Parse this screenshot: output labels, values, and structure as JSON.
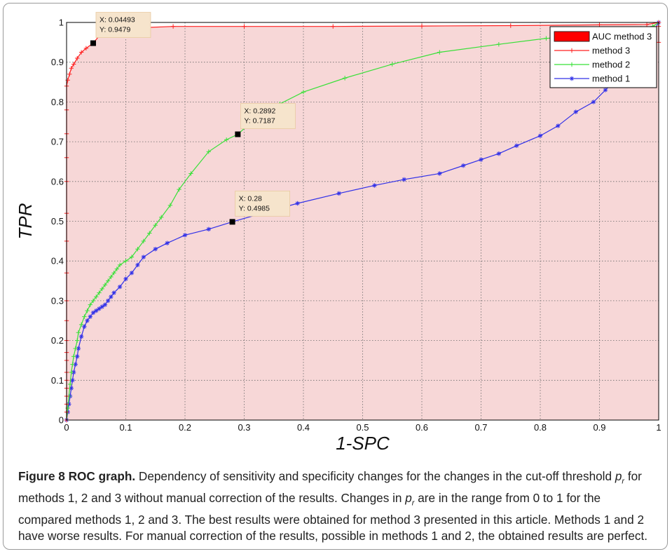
{
  "chart_data": {
    "type": "line",
    "title": "",
    "xlabel": "1-SPC",
    "ylabel": "TPR",
    "xlim": [
      0,
      1
    ],
    "ylim": [
      0,
      1
    ],
    "xticks": [
      "0",
      "0.1",
      "0.2",
      "0.3",
      "0.4",
      "0.5",
      "0.6",
      "0.7",
      "0.8",
      "0.9",
      "1"
    ],
    "yticks": [
      "0",
      "0.1",
      "0.2",
      "0.3",
      "0.4",
      "0.5",
      "0.6",
      "0.7",
      "0.8",
      "0.9",
      "1"
    ],
    "grid": true,
    "legend_position": "top-right",
    "area": {
      "name": "AUC method 3",
      "color": "#ff0000",
      "fill_color": "#f7d7d7"
    },
    "series": [
      {
        "name": "method 3",
        "color": "#ff2020",
        "marker": "+",
        "x": [
          0,
          0,
          0,
          0,
          0,
          0,
          0,
          0,
          0,
          0,
          0,
          0,
          0,
          0,
          0,
          0,
          0,
          0,
          0,
          0,
          0.002,
          0.005,
          0.008,
          0.012,
          0.018,
          0.025,
          0.033,
          0.04493,
          0.06,
          0.08,
          0.1,
          0.13,
          0.18,
          0.3,
          0.45,
          0.6,
          0.75,
          0.9,
          0.98,
          1,
          1,
          1
        ],
        "y": [
          0,
          0.02,
          0.04,
          0.06,
          0.08,
          0.1,
          0.12,
          0.15,
          0.17,
          0.2,
          0.25,
          0.3,
          0.37,
          0.45,
          0.52,
          0.6,
          0.66,
          0.72,
          0.78,
          0.84,
          0.855,
          0.87,
          0.885,
          0.895,
          0.91,
          0.925,
          0.935,
          0.9479,
          0.975,
          0.982,
          0.985,
          0.987,
          0.99,
          0.99,
          0.99,
          0.991,
          0.992,
          0.994,
          0.995,
          1.0,
          0.99,
          0.95
        ]
      },
      {
        "name": "method 2",
        "color": "#38e038",
        "marker": "+",
        "x": [
          0,
          0.002,
          0.004,
          0.006,
          0.008,
          0.01,
          0.012,
          0.015,
          0.018,
          0.02,
          0.025,
          0.03,
          0.035,
          0.04,
          0.045,
          0.05,
          0.055,
          0.06,
          0.065,
          0.07,
          0.075,
          0.08,
          0.085,
          0.09,
          0.1,
          0.11,
          0.12,
          0.13,
          0.14,
          0.15,
          0.16,
          0.175,
          0.19,
          0.21,
          0.24,
          0.27,
          0.2892,
          0.32,
          0.36,
          0.4,
          0.47,
          0.55,
          0.63,
          0.73,
          0.81,
          0.87,
          0.91,
          0.94,
          0.97,
          0.99,
          1
        ],
        "y": [
          0,
          0.03,
          0.06,
          0.09,
          0.12,
          0.14,
          0.16,
          0.18,
          0.2,
          0.22,
          0.24,
          0.26,
          0.275,
          0.29,
          0.3,
          0.31,
          0.32,
          0.33,
          0.34,
          0.35,
          0.36,
          0.37,
          0.38,
          0.39,
          0.4,
          0.41,
          0.43,
          0.45,
          0.47,
          0.49,
          0.51,
          0.54,
          0.58,
          0.62,
          0.675,
          0.705,
          0.7187,
          0.76,
          0.795,
          0.825,
          0.86,
          0.895,
          0.925,
          0.945,
          0.96,
          0.965,
          0.975,
          0.98,
          0.985,
          0.99,
          1.0
        ]
      },
      {
        "name": "method 1",
        "color": "#3030e8",
        "marker": "*",
        "x": [
          0,
          0.002,
          0.004,
          0.006,
          0.008,
          0.01,
          0.012,
          0.015,
          0.018,
          0.02,
          0.025,
          0.03,
          0.035,
          0.04,
          0.045,
          0.05,
          0.055,
          0.06,
          0.065,
          0.07,
          0.075,
          0.08,
          0.09,
          0.1,
          0.11,
          0.12,
          0.13,
          0.15,
          0.17,
          0.2,
          0.24,
          0.28,
          0.33,
          0.39,
          0.46,
          0.52,
          0.57,
          0.63,
          0.67,
          0.7,
          0.73,
          0.76,
          0.8,
          0.83,
          0.86,
          0.89,
          0.91,
          0.93,
          0.96,
          0.98,
          1
        ],
        "y": [
          0,
          0.02,
          0.04,
          0.06,
          0.08,
          0.1,
          0.12,
          0.14,
          0.16,
          0.18,
          0.21,
          0.235,
          0.25,
          0.26,
          0.27,
          0.275,
          0.28,
          0.285,
          0.29,
          0.3,
          0.31,
          0.32,
          0.335,
          0.355,
          0.37,
          0.39,
          0.41,
          0.43,
          0.445,
          0.465,
          0.48,
          0.4985,
          0.52,
          0.545,
          0.57,
          0.59,
          0.605,
          0.62,
          0.64,
          0.655,
          0.67,
          0.69,
          0.715,
          0.74,
          0.775,
          0.8,
          0.83,
          0.86,
          0.9,
          0.95,
          1.0
        ]
      }
    ],
    "annotations": [
      {
        "x": 0.04493,
        "y": 0.9479,
        "label_x": "X: 0.04493",
        "label_y": "Y: 0.9479"
      },
      {
        "x": 0.2892,
        "y": 0.7187,
        "label_x": "X: 0.2892",
        "label_y": "Y: 0.7187"
      },
      {
        "x": 0.28,
        "y": 0.4985,
        "label_x": "X: 0.28",
        "label_y": "Y: 0.4985"
      }
    ]
  },
  "caption": {
    "label": "Figure 8 ROC graph.",
    "s1": " Dependency of sensitivity and specificity changes for the changes in the cut-off threshold ",
    "p": "p",
    "sub": "r",
    "s2": " for methods 1, 2 and 3 without manual correction of the results. Changes in ",
    "s3": " are in the range from 0 to 1 for the compared methods 1, 2 and 3. The best results were obtained for method 3 presented in this article. Methods 1 and 2 have worse results. For manual correction of the results, possible in methods 1 and 2, the obtained results are perfect."
  }
}
